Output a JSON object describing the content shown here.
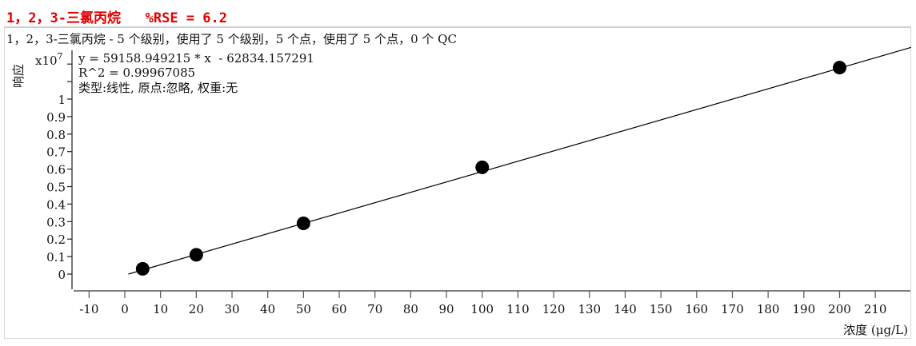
{
  "header": {
    "title": "1，2，3-三氯丙烷   %RSE = 6.2"
  },
  "chart_data": {
    "type": "scatter",
    "title": "1，2，3-三氯丙烷 - 5 个级别，使用了 5 个级别，5 个点，使用了 5 个点，0 个 QC",
    "xlabel": "浓度 (μg/L)",
    "ylabel": "响应",
    "y_multiplier": "x10",
    "y_multiplier_exp": "7",
    "equation": "y = 59158.949215 * x  - 62834.157291",
    "r2": "R^2 = 0.99967085",
    "fit_info": "类型:线性, 原点:忽略, 权重:无",
    "xlim": [
      -12,
      222
    ],
    "ylim": [
      -0.08,
      1.32
    ],
    "x_ticks": [
      -10,
      0,
      10,
      20,
      30,
      40,
      50,
      60,
      70,
      80,
      90,
      100,
      110,
      120,
      130,
      140,
      150,
      160,
      170,
      180,
      190,
      200,
      210
    ],
    "y_ticks": [
      0,
      0.1,
      0.2,
      0.3,
      0.4,
      0.5,
      0.6,
      0.7,
      0.8,
      0.9,
      1
    ],
    "y_tick_labels": [
      "0",
      "0.1",
      "0.2",
      "0.3",
      "0.4",
      "0.5",
      "0.6",
      "0.7",
      "0.8",
      "0.9",
      "1"
    ],
    "points": {
      "x": [
        5,
        20,
        50,
        100,
        200
      ],
      "y": [
        0.03,
        0.11,
        0.29,
        0.61,
        1.18
      ]
    },
    "fit_line": {
      "slope": 59158.949215,
      "intercept": -62834.157291,
      "x_range": [
        1,
        220
      ]
    },
    "grid": false,
    "colors": {
      "title": "#e00000",
      "points": "#000000",
      "line": "#000000"
    }
  }
}
